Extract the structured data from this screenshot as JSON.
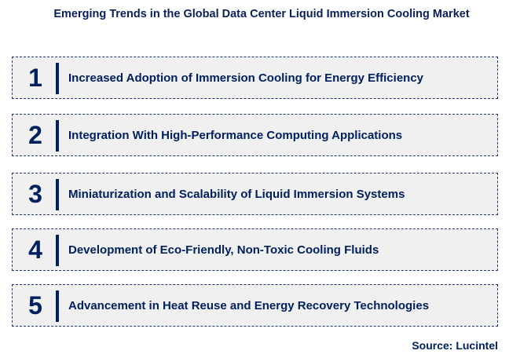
{
  "title": "Emerging Trends in the Global Data Center Liquid Immersion Cooling Market",
  "items": [
    {
      "num": "1",
      "text": "Increased Adoption of Immersion Cooling for Energy Efficiency"
    },
    {
      "num": "2",
      "text": "Integration With High-Performance Computing Applications"
    },
    {
      "num": "3",
      "text": "Miniaturization and Scalability of Liquid Immersion Systems"
    },
    {
      "num": "4",
      "text": "Development of Eco-Friendly, Non-Toxic Cooling Fluids"
    },
    {
      "num": "5",
      "text": "Advancement in Heat Reuse and Energy Recovery Technologies"
    }
  ],
  "source": "Source: Lucintel",
  "colors": {
    "navy": "#002060",
    "box_bg": "#f0f0f0"
  }
}
